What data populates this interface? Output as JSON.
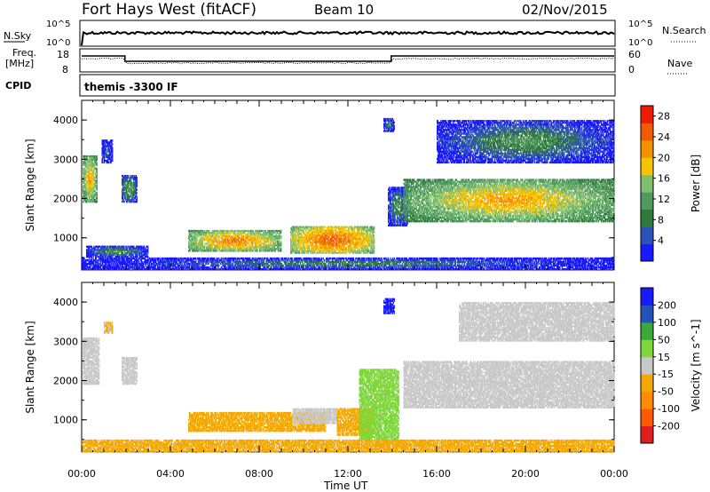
{
  "header": {
    "station": "Fort Hays West (fitACF)",
    "beam": "Beam 10",
    "date": "02/Nov/2015"
  },
  "nsky_panel": {
    "label": "N.Sky",
    "left_ticks": [
      "10^5",
      "10^0"
    ],
    "right_label": "N.Search",
    "right_ticks": [
      "10^5",
      "10^0"
    ]
  },
  "freq_panel": {
    "label_line1": "Freq.",
    "label_line2": "[MHz]",
    "left_ticks": [
      "18",
      "8"
    ],
    "right_label": "Nave",
    "right_ticks": [
      "60",
      "0"
    ]
  },
  "cpid_panel": {
    "label": "CPID",
    "text": "themis -3300 IF"
  },
  "colors": {
    "power_scale": [
      "#1a1aff",
      "#2a52b8",
      "#2e7a3c",
      "#4f9a5e",
      "#7fbf6f",
      "#f5c400",
      "#f39200",
      "#f05a00",
      "#ee1c00"
    ],
    "velocity_scale": [
      "#e01e1e",
      "#ff5a00",
      "#ff8c00",
      "#f5a800",
      "#c8c8c8",
      "#7fd83a",
      "#3aa83a",
      "#2452b8",
      "#1a1aff"
    ],
    "ground_scatter": "#bebebe"
  },
  "chart_data": [
    {
      "type": "heatmap",
      "title": "",
      "xlabel": "",
      "ylabel": "Slant Range [km]",
      "x_ticks": [
        "00:00",
        "04:00",
        "08:00",
        "12:00",
        "16:00",
        "20:00",
        "00:00"
      ],
      "xlim_hours": [
        0,
        24
      ],
      "y_ticks": [
        1000,
        2000,
        3000,
        4000
      ],
      "ylim": [
        180,
        4500
      ],
      "colorbar": {
        "label": "Power [dB]",
        "ticks": [
          4,
          8,
          12,
          16,
          20,
          24,
          28
        ],
        "range": [
          0,
          30
        ]
      },
      "regions": [
        {
          "t0": 0.05,
          "t1": 0.7,
          "r0": 1900,
          "r1": 3100,
          "level": 22
        },
        {
          "t0": 0.9,
          "t1": 1.4,
          "r0": 2900,
          "r1": 3500,
          "level": 8
        },
        {
          "t0": 1.8,
          "t1": 2.5,
          "r0": 1900,
          "r1": 2600,
          "level": 14
        },
        {
          "t0": 0.2,
          "t1": 3.0,
          "r0": 500,
          "r1": 800,
          "level": 12
        },
        {
          "t0": 4.8,
          "t1": 9.0,
          "r0": 650,
          "r1": 1200,
          "level": 24
        },
        {
          "t0": 9.4,
          "t1": 13.2,
          "r0": 600,
          "r1": 1300,
          "level": 26
        },
        {
          "t0": 13.6,
          "t1": 14.1,
          "r0": 3700,
          "r1": 4050,
          "level": 10
        },
        {
          "t0": 13.8,
          "t1": 14.7,
          "r0": 1300,
          "r1": 2300,
          "level": 12
        },
        {
          "t0": 14.5,
          "t1": 24.0,
          "r0": 1400,
          "r1": 2500,
          "level": 22
        },
        {
          "t0": 16.0,
          "t1": 24.0,
          "r0": 2900,
          "r1": 4000,
          "level": 12
        },
        {
          "t0": 0.0,
          "t1": 24.0,
          "r0": 180,
          "r1": 500,
          "level": 10
        }
      ]
    },
    {
      "type": "heatmap",
      "title": "",
      "xlabel": "Time UT",
      "ylabel": "Slant Range [km]",
      "x_ticks": [
        "00:00",
        "04:00",
        "08:00",
        "12:00",
        "16:00",
        "20:00",
        "00:00"
      ],
      "xlim_hours": [
        0,
        24
      ],
      "y_ticks": [
        1000,
        2000,
        3000,
        4000
      ],
      "ylim": [
        180,
        4500
      ],
      "colorbar": {
        "label": "Velocity [m s^-1]",
        "ticks": [
          200,
          100,
          50,
          15,
          -15,
          -50,
          -100,
          -200
        ],
        "range": [
          -250,
          250
        ]
      },
      "regions": [
        {
          "t0": 0.05,
          "t1": 0.8,
          "r0": 1900,
          "r1": 3100,
          "level": 0
        },
        {
          "t0": 1.8,
          "t1": 2.5,
          "r0": 1900,
          "r1": 2600,
          "level": 0
        },
        {
          "t0": 1.0,
          "t1": 1.4,
          "r0": 3200,
          "r1": 3500,
          "level": -30
        },
        {
          "t0": 4.8,
          "t1": 11.0,
          "r0": 700,
          "r1": 1200,
          "level": -60
        },
        {
          "t0": 9.5,
          "t1": 11.5,
          "r0": 900,
          "r1": 1300,
          "level": 0
        },
        {
          "t0": 11.5,
          "t1": 13.2,
          "r0": 600,
          "r1": 1300,
          "level": -40
        },
        {
          "t0": 12.5,
          "t1": 14.3,
          "r0": 500,
          "r1": 2300,
          "level": 40
        },
        {
          "t0": 13.6,
          "t1": 14.1,
          "r0": 3700,
          "r1": 4100,
          "level": 220
        },
        {
          "t0": 14.5,
          "t1": 24.0,
          "r0": 1300,
          "r1": 2500,
          "level": 0
        },
        {
          "t0": 17.0,
          "t1": 24.0,
          "r0": 3000,
          "r1": 4000,
          "level": 0
        },
        {
          "t0": 0.0,
          "t1": 24.0,
          "r0": 180,
          "r1": 500,
          "level": -60
        }
      ]
    }
  ],
  "axis_label": "Time UT"
}
